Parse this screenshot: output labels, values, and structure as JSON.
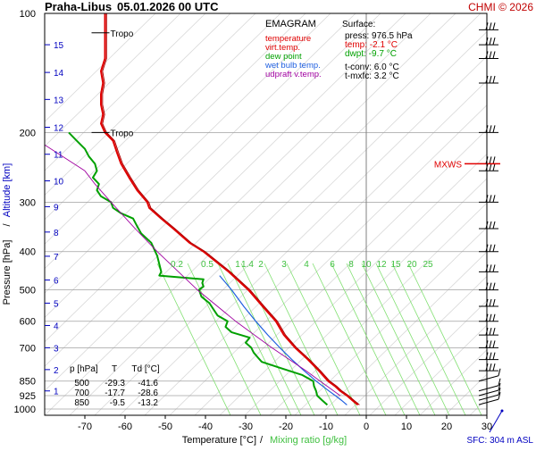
{
  "header": {
    "station": "Praha-Libus",
    "datetime": "05.01.2026 00 UTC",
    "credit": "CHMI © 2026"
  },
  "legend": {
    "title": "EMAGRAM",
    "items": [
      {
        "label": "temperature",
        "color": "#e00000"
      },
      {
        "label": "virt.temp.",
        "color": "#e00000"
      },
      {
        "label": "dew point",
        "color": "#00a000"
      },
      {
        "label": "wet bulb temp.",
        "color": "#2060e0"
      },
      {
        "label": "udpraft v.temp.",
        "color": "#a000a0"
      }
    ]
  },
  "surface": {
    "title": "Surface:",
    "lines": [
      {
        "text": "press: 976.5 hPa",
        "color": "#000000"
      },
      {
        "text": "temp: -2.1 °C",
        "color": "#e00000"
      },
      {
        "text": "dwpt: -9.7 °C",
        "color": "#00a000"
      },
      {
        "text": "t-conv: 6.0 °C",
        "color": "#000000"
      },
      {
        "text": "t-mxfc: 3.2 °C",
        "color": "#000000"
      }
    ]
  },
  "table": {
    "headers": [
      "p [hPa]",
      "T",
      "Td [°C]"
    ],
    "rows": [
      [
        "500",
        "-29.3",
        "-41.6"
      ],
      [
        "700",
        "-17.7",
        "-28.6"
      ],
      [
        "850",
        "-9.5",
        "-13.2"
      ]
    ]
  },
  "labels": {
    "tropo1": "Tropo",
    "tropo2": "Tropo",
    "mxws": "MXWS",
    "sfc": "SFC: 304 m ASL",
    "xaxis_temp": "Temperature [°C]",
    "xaxis_sep": "/",
    "xaxis_mix": "Mixing ratio [g/kg]",
    "yaxis_press": "Pressure [hPa]",
    "yaxis_sep": "/",
    "yaxis_alt": "Altitude [km]"
  },
  "colors": {
    "temperature": "#e00000",
    "dewpoint": "#00a000",
    "wetbulb": "#2060e0",
    "updraft": "#a000a0",
    "mixing": "#80e070",
    "grid": "#a0a0a0",
    "altitude": "#0000c0"
  },
  "chart_data": {
    "type": "line",
    "title": "EMAGRAM",
    "xlabel": "Temperature [°C] / Mixing ratio [g/kg]",
    "ylabel": "Pressure [hPa] / Altitude [km]",
    "xlim": [
      -80,
      30
    ],
    "ylim": [
      1000,
      100
    ],
    "y_scale": "log",
    "x_ticks": [
      -70,
      -60,
      -50,
      -40,
      -30,
      -20,
      -10,
      0,
      10,
      20,
      30
    ],
    "pressure_ticks": [
      1000,
      925,
      850,
      700,
      600,
      500,
      400,
      300,
      200,
      100
    ],
    "altitude_km_ticks": [
      {
        "km": 1,
        "p": 900
      },
      {
        "km": 2,
        "p": 795
      },
      {
        "km": 3,
        "p": 700
      },
      {
        "km": 4,
        "p": 615
      },
      {
        "km": 5,
        "p": 540
      },
      {
        "km": 6,
        "p": 472
      },
      {
        "km": 7,
        "p": 411
      },
      {
        "km": 8,
        "p": 357
      },
      {
        "km": 9,
        "p": 308
      },
      {
        "km": 10,
        "p": 265
      },
      {
        "km": 11,
        "p": 227
      },
      {
        "km": 12,
        "p": 194
      },
      {
        "km": 13,
        "p": 165
      },
      {
        "km": 14,
        "p": 141
      },
      {
        "km": 15,
        "p": 120
      }
    ],
    "mixing_ratio_labels": [
      "0.2",
      "0.5",
      "1",
      "1.4",
      "2",
      "3",
      "4",
      "6",
      "8",
      "10",
      "12",
      "15",
      "20",
      "25"
    ],
    "mixing_ratio_values": [
      0.2,
      0.5,
      1,
      1.4,
      2,
      3,
      4,
      6,
      8,
      10,
      12,
      15,
      20,
      25
    ],
    "tropopause": [
      {
        "label": "Tropo",
        "p": 112,
        "t": -65
      },
      {
        "label": "Tropo",
        "p": 200,
        "t": -65
      }
    ],
    "series": [
      {
        "name": "temperature",
        "points": [
          [
            976.5,
            -2.1
          ],
          [
            950,
            -3.5
          ],
          [
            925,
            -4.8
          ],
          [
            900,
            -6.5
          ],
          [
            875,
            -7.8
          ],
          [
            850,
            -9.5
          ],
          [
            800,
            -11.8
          ],
          [
            750,
            -14.5
          ],
          [
            700,
            -17.7
          ],
          [
            650,
            -20.5
          ],
          [
            600,
            -22.5
          ],
          [
            550,
            -25.8
          ],
          [
            500,
            -29.3
          ],
          [
            450,
            -34.2
          ],
          [
            400,
            -40.5
          ],
          [
            380,
            -44
          ],
          [
            350,
            -48
          ],
          [
            330,
            -51
          ],
          [
            310,
            -54
          ],
          [
            300,
            -54.5
          ],
          [
            280,
            -57
          ],
          [
            260,
            -59
          ],
          [
            240,
            -61
          ],
          [
            225,
            -62
          ],
          [
            210,
            -63
          ],
          [
            200,
            -65
          ],
          [
            190,
            -66
          ],
          [
            180,
            -65.5
          ],
          [
            170,
            -66
          ],
          [
            160,
            -66
          ],
          [
            150,
            -65.5
          ],
          [
            140,
            -66
          ],
          [
            130,
            -65
          ],
          [
            120,
            -65
          ],
          [
            112,
            -65
          ],
          [
            100,
            -65
          ]
        ]
      },
      {
        "name": "dew point",
        "points": [
          [
            976.5,
            -9.7
          ],
          [
            950,
            -11
          ],
          [
            925,
            -12.2
          ],
          [
            900,
            -12.5
          ],
          [
            875,
            -13
          ],
          [
            850,
            -13.2
          ],
          [
            820,
            -16
          ],
          [
            790,
            -21
          ],
          [
            760,
            -26
          ],
          [
            740,
            -27
          ],
          [
            720,
            -28
          ],
          [
            700,
            -28.6
          ],
          [
            680,
            -30
          ],
          [
            660,
            -29
          ],
          [
            640,
            -33.5
          ],
          [
            620,
            -35
          ],
          [
            600,
            -34.5
          ],
          [
            580,
            -37
          ],
          [
            560,
            -38
          ],
          [
            540,
            -39
          ],
          [
            520,
            -41
          ],
          [
            500,
            -41.6
          ],
          [
            490,
            -40.5
          ],
          [
            480,
            -40.8
          ],
          [
            470,
            -40.5
          ],
          [
            460,
            -51.5
          ],
          [
            450,
            -51
          ],
          [
            430,
            -51.5
          ],
          [
            410,
            -52
          ],
          [
            400,
            -52.5
          ],
          [
            380,
            -53.5
          ],
          [
            360,
            -56
          ],
          [
            345,
            -57
          ],
          [
            330,
            -58
          ],
          [
            320,
            -61
          ],
          [
            310,
            -63
          ],
          [
            300,
            -63.5
          ],
          [
            290,
            -66
          ],
          [
            280,
            -67
          ],
          [
            270,
            -66.5
          ],
          [
            260,
            -68
          ],
          [
            250,
            -67
          ],
          [
            240,
            -67.5
          ],
          [
            230,
            -69
          ],
          [
            220,
            -70
          ],
          [
            210,
            -72
          ],
          [
            200,
            -74
          ]
        ]
      },
      {
        "name": "wet bulb temp.",
        "points": [
          [
            976.5,
            -4.8
          ],
          [
            950,
            -6.2
          ],
          [
            925,
            -7.7
          ],
          [
            900,
            -9.3
          ],
          [
            850,
            -12.5
          ],
          [
            800,
            -15.5
          ],
          [
            750,
            -18.5
          ],
          [
            700,
            -21.5
          ],
          [
            650,
            -24.5
          ],
          [
            600,
            -27.5
          ],
          [
            550,
            -30.5
          ],
          [
            500,
            -33.5
          ],
          [
            460,
            -36.5
          ]
        ]
      },
      {
        "name": "udpraft v.temp.",
        "points": [
          [
            925,
            -6.5
          ],
          [
            850,
            -11.5
          ],
          [
            800,
            -15
          ],
          [
            700,
            -23.5
          ],
          [
            600,
            -32.5
          ],
          [
            500,
            -42
          ],
          [
            400,
            -52
          ],
          [
            350,
            -57.5
          ],
          [
            300,
            -63.5
          ],
          [
            270,
            -67.5
          ],
          [
            250,
            -70
          ]
        ]
      }
    ],
    "wind_levels_hpa": [
      975,
      950,
      925,
      900,
      850,
      800,
      750,
      700,
      650,
      600,
      550,
      500,
      450,
      400,
      350,
      300,
      250,
      240,
      200,
      150,
      130,
      120,
      110
    ],
    "mxws_p": 240
  }
}
